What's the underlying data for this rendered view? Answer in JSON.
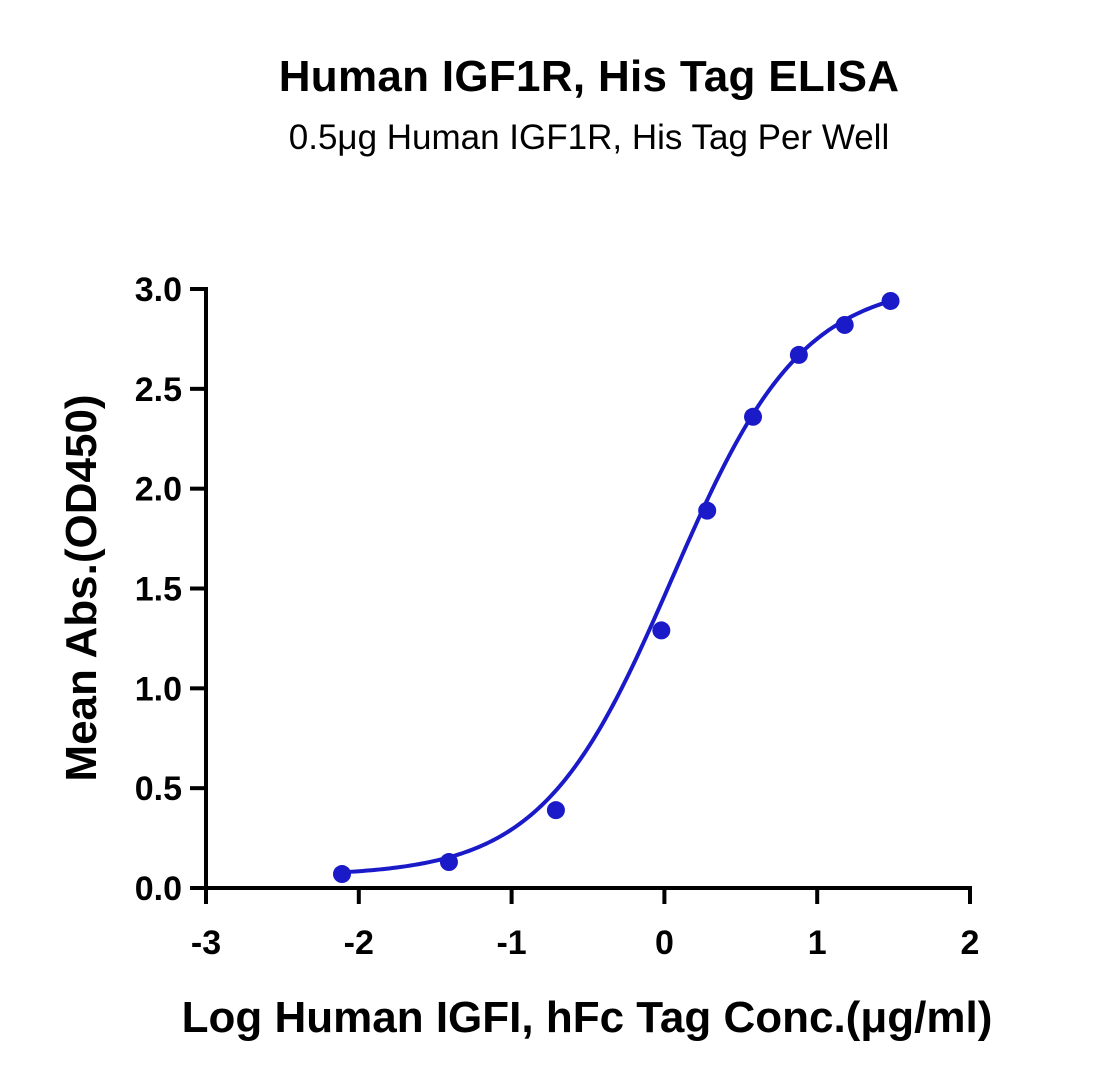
{
  "chart_data": {
    "type": "scatter",
    "title": "Human IGF1R, His Tag ELISA",
    "subtitle": "0.5μg Human IGF1R, His Tag Per Well",
    "xlabel": "Log Human IGFI, hFc Tag Conc.(μg/ml)",
    "ylabel": "Mean Abs.(OD450)",
    "xlim": [
      -3,
      2
    ],
    "ylim": [
      0,
      3.0
    ],
    "xticks": [
      "-3",
      "-2",
      "-1",
      "0",
      "1",
      "2"
    ],
    "yticks": [
      "0.0",
      "0.5",
      "1.0",
      "1.5",
      "2.0",
      "2.5",
      "3.0"
    ],
    "grid": false,
    "series": [
      {
        "x": [
          -2.11,
          -1.41,
          -0.71,
          -0.02,
          0.28,
          0.58,
          0.88,
          1.18,
          1.48
        ],
        "y": [
          0.07,
          0.13,
          0.39,
          1.29,
          1.89,
          2.36,
          2.67,
          2.82,
          2.94
        ],
        "color": "#1a1ac8",
        "fit": "4PL sigmoid curve"
      }
    ]
  }
}
